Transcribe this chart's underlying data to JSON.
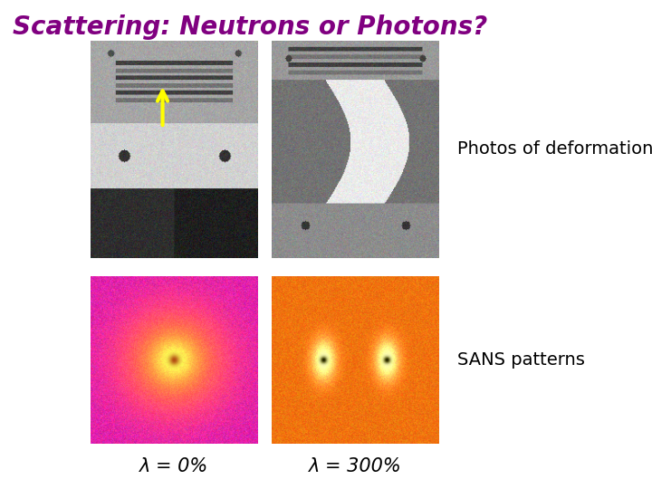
{
  "title": "Scattering: Neutrons or Photons?",
  "title_color": "#800080",
  "title_fontsize": 20,
  "background_color": "#ffffff",
  "label_left": "λ = 0%",
  "label_right": "λ = 300%",
  "text_photos": "Photos of deformation",
  "text_sans": "SANS patterns",
  "text_fontsize": 14,
  "label_fontsize": 15,
  "fig_width": 7.2,
  "fig_height": 5.4,
  "dpi": 100
}
